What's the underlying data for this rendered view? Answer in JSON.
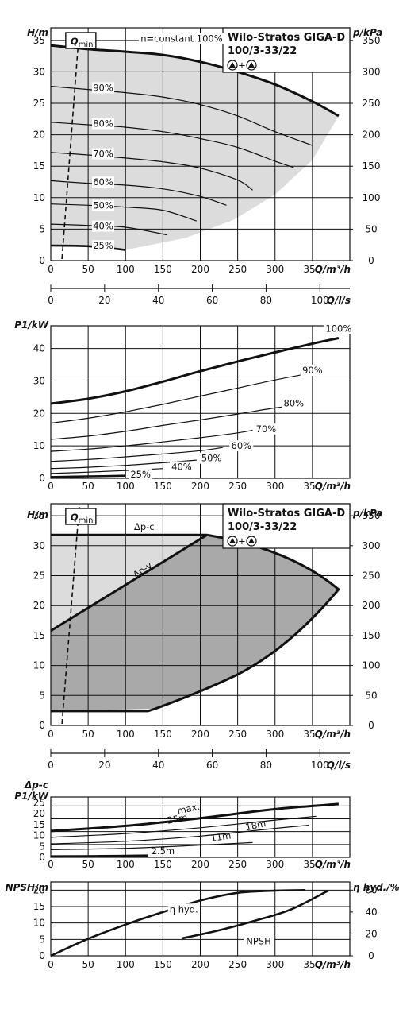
{
  "chart_data": [
    {
      "type": "line",
      "title": "Wilo-Stratos GIGA-D 100/3-33/22",
      "ylabel": "H/m",
      "y2label": "p/kPa",
      "xlabel": "Q/m³/h",
      "x2label": "Q/l/s",
      "xlim": [
        0,
        400
      ],
      "ylim": [
        0,
        37
      ],
      "xticks": [
        "0",
        "50",
        "100",
        "150",
        "200",
        "250",
        "300",
        "350"
      ],
      "yticks": [
        "0",
        "5",
        "10",
        "15",
        "20",
        "25",
        "30",
        "35"
      ],
      "y2ticks": [
        "0",
        "50",
        "100",
        "150",
        "200",
        "250",
        "300",
        "350"
      ],
      "x2ticks": [
        "0",
        "20",
        "40",
        "60",
        "80",
        "100"
      ],
      "qmin_label": "Qmin",
      "series": [
        {
          "name": "n=constant 100%",
          "x": [
            0,
            50,
            100,
            150,
            200,
            250,
            300,
            350,
            385
          ],
          "y": [
            34.2,
            33.6,
            33.2,
            32.7,
            31.6,
            30,
            28,
            25.3,
            23
          ]
        },
        {
          "name": "90%",
          "x": [
            0,
            50,
            100,
            150,
            200,
            250,
            300,
            350
          ],
          "y": [
            27.7,
            27.2,
            26.7,
            26,
            24.8,
            23,
            20.5,
            18.3
          ]
        },
        {
          "name": "80%",
          "x": [
            0,
            50,
            100,
            150,
            200,
            250,
            300,
            325
          ],
          "y": [
            22,
            21.6,
            21.2,
            20.5,
            19.4,
            18,
            15.8,
            14.8
          ]
        },
        {
          "name": "70%",
          "x": [
            0,
            50,
            100,
            150,
            200,
            250,
            270
          ],
          "y": [
            17.2,
            16.8,
            16.3,
            15.7,
            14.7,
            12.8,
            11.2
          ]
        },
        {
          "name": "60%",
          "x": [
            0,
            50,
            100,
            150,
            200,
            235
          ],
          "y": [
            12.7,
            12.3,
            12,
            11.4,
            10.2,
            8.8
          ]
        },
        {
          "name": "50%",
          "x": [
            0,
            50,
            100,
            150,
            195
          ],
          "y": [
            9,
            8.8,
            8.5,
            8,
            6.3
          ]
        },
        {
          "name": "40%",
          "x": [
            0,
            50,
            100,
            155
          ],
          "y": [
            5.8,
            5.6,
            5.3,
            4.1
          ]
        },
        {
          "name": "25%",
          "x": [
            0,
            50,
            100
          ],
          "y": [
            2.4,
            2.3,
            1.7
          ]
        }
      ]
    },
    {
      "type": "line",
      "ylabel": "P1/kW",
      "xlabel": "Q/m³/h",
      "xlim": [
        0,
        400
      ],
      "ylim": [
        0,
        47
      ],
      "xticks": [
        "0",
        "50",
        "100",
        "150",
        "200",
        "250",
        "300",
        "350"
      ],
      "yticks": [
        "0",
        "10",
        "20",
        "30",
        "40"
      ],
      "series": [
        {
          "name": "100%",
          "x": [
            0,
            50,
            100,
            150,
            200,
            250,
            300,
            350,
            385
          ],
          "y": [
            23,
            24.5,
            26.8,
            29.8,
            33,
            36,
            38.8,
            41.5,
            43.2
          ]
        },
        {
          "name": "90%",
          "x": [
            0,
            50,
            100,
            150,
            200,
            250,
            300,
            350
          ],
          "y": [
            17,
            18.5,
            20.5,
            22.8,
            25.3,
            27.8,
            30.3,
            32.5
          ]
        },
        {
          "name": "80%",
          "x": [
            0,
            50,
            100,
            150,
            200,
            250,
            300,
            325
          ],
          "y": [
            12,
            13,
            14.5,
            16.3,
            18,
            19.8,
            21.7,
            22.3
          ]
        },
        {
          "name": "70%",
          "x": [
            0,
            50,
            100,
            150,
            200,
            250,
            270
          ],
          "y": [
            8.3,
            9,
            10,
            11.2,
            12.5,
            14,
            14.8
          ]
        },
        {
          "name": "60%",
          "x": [
            0,
            50,
            100,
            150,
            200,
            230
          ],
          "y": [
            5.2,
            5.8,
            6.6,
            7.5,
            8.5,
            9.5
          ]
        },
        {
          "name": "50%",
          "x": [
            0,
            50,
            100,
            150,
            195
          ],
          "y": [
            3,
            3.4,
            4,
            4.8,
            5.6
          ]
        },
        {
          "name": "40%",
          "x": [
            0,
            50,
            100,
            150
          ],
          "y": [
            1.5,
            1.9,
            2.4,
            3
          ]
        },
        {
          "name": "25%",
          "x": [
            0,
            50,
            100
          ],
          "y": [
            0.4,
            0.6,
            0.8
          ]
        }
      ]
    },
    {
      "type": "area",
      "title": "Wilo-Stratos GIGA-D 100/3-33/22",
      "ylabel": "H/m",
      "y2label": "p/kPa",
      "xlabel": "Q/m³/h",
      "x2label": "Q/l/s",
      "xlim": [
        0,
        400
      ],
      "ylim": [
        0,
        37
      ],
      "xticks": [
        "0",
        "50",
        "100",
        "150",
        "200",
        "250",
        "300",
        "350"
      ],
      "yticks": [
        "0",
        "5",
        "10",
        "15",
        "20",
        "25",
        "30",
        "35"
      ],
      "y2ticks": [
        "0",
        "50",
        "100",
        "150",
        "200",
        "250",
        "300",
        "350"
      ],
      "x2ticks": [
        "0",
        "20",
        "40",
        "60",
        "80",
        "100"
      ],
      "qmin_label": "Qmin",
      "series": [
        {
          "name": "Δp-c",
          "x": [
            0,
            209
          ],
          "y": [
            31.8,
            31.8
          ]
        },
        {
          "name": "Δp-v",
          "x": [
            0,
            209
          ],
          "y": [
            15.8,
            31.8
          ]
        }
      ]
    },
    {
      "type": "line",
      "ylabel": "Δp-c P1/kW",
      "xlabel": "Q/m³/h",
      "xlim": [
        0,
        400
      ],
      "ylim": [
        0,
        47
      ],
      "xticks": [
        "0",
        "50",
        "100",
        "150",
        "200",
        "250",
        "300",
        "350"
      ],
      "yticks": [
        "0",
        "5",
        "10",
        "15",
        "20",
        "25"
      ],
      "series": [
        {
          "name": "max.",
          "x": [
            0,
            100,
            200,
            300,
            385
          ],
          "y": [
            20.5,
            24.5,
            30.5,
            37.5,
            41.5
          ]
        },
        {
          "name": "25m",
          "x": [
            0,
            100,
            200,
            300,
            355
          ],
          "y": [
            15.5,
            18.5,
            23,
            29,
            32
          ]
        },
        {
          "name": "18m",
          "x": [
            0,
            100,
            200,
            300,
            345
          ],
          "y": [
            10.5,
            12.5,
            16.5,
            22.5,
            25
          ]
        },
        {
          "name": "11m",
          "x": [
            0,
            100,
            200,
            270
          ],
          "y": [
            6,
            7,
            9.5,
            11.5
          ]
        },
        {
          "name": "2.5m",
          "x": [
            0,
            60,
            130
          ],
          "y": [
            0.8,
            1,
            1.4
          ]
        }
      ]
    },
    {
      "type": "line",
      "ylabel": "NPSH/m",
      "y2label": "η hyd./%",
      "xlabel": "Q/m³/h",
      "xlim": [
        0,
        400
      ],
      "ylim": [
        0,
        22.5
      ],
      "xticks": [
        "0",
        "50",
        "100",
        "150",
        "200",
        "250",
        "300",
        "350"
      ],
      "yticks": [
        "0",
        "5",
        "10",
        "15",
        "20"
      ],
      "y2ticks": [
        "0",
        "20",
        "40",
        "60"
      ],
      "series": [
        {
          "name": "η hyd.",
          "x": [
            0,
            50,
            100,
            150,
            200,
            250,
            300,
            340
          ],
          "y": [
            0,
            15.5,
            28.5,
            40,
            50.5,
            57.5,
            59.5,
            60
          ]
        },
        {
          "name": "NPSH",
          "x": [
            175,
            220,
            270,
            320,
            370
          ],
          "y": [
            5.3,
            7.5,
            10.5,
            14,
            19.7
          ]
        }
      ]
    }
  ]
}
